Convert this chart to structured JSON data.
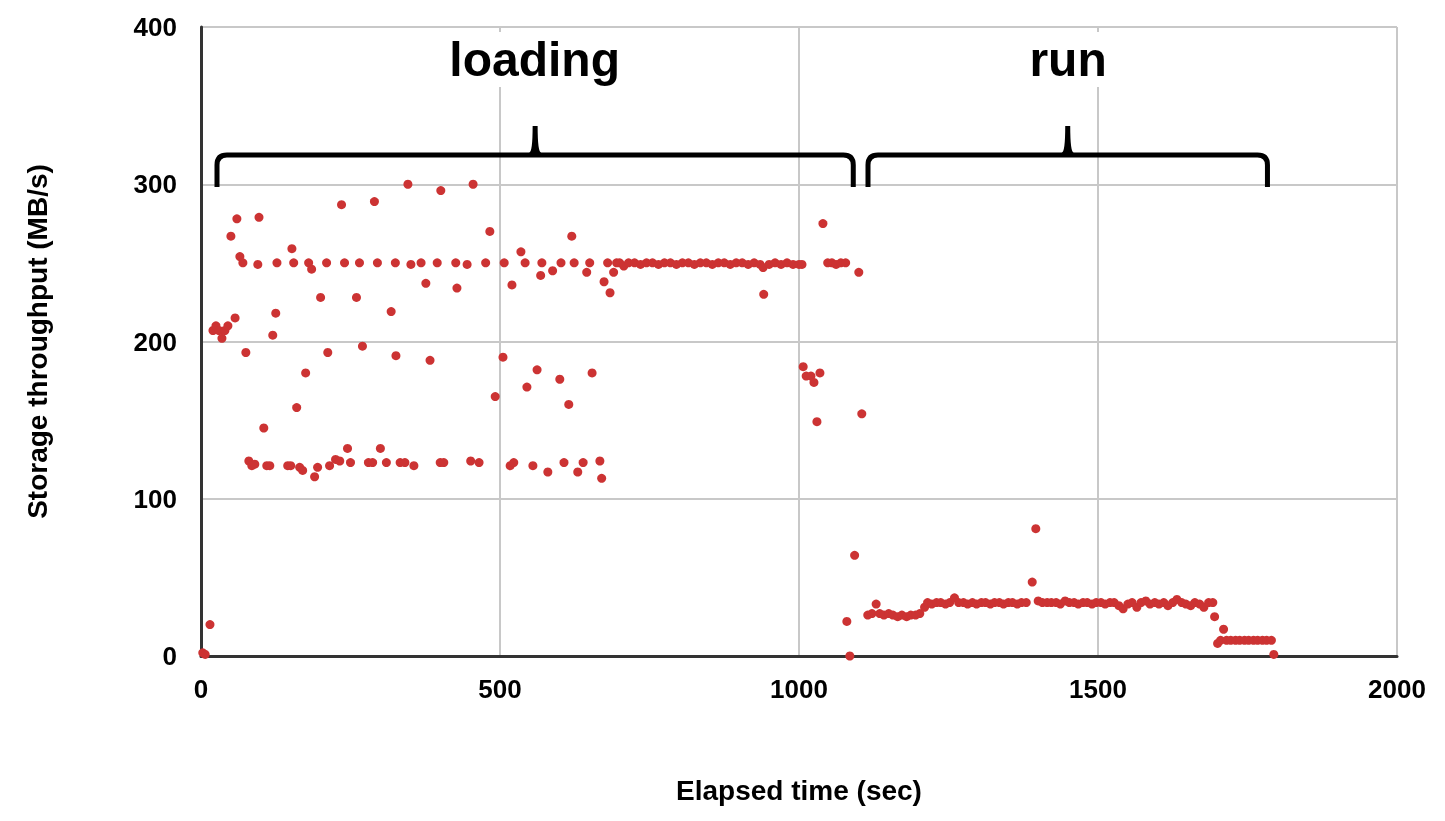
{
  "chart_data": {
    "type": "scatter",
    "xlabel": "Elapsed time (sec)",
    "ylabel": "Storage throughput (MB/s)",
    "annotations": [
      "loading",
      "run"
    ],
    "xlim": [
      0,
      2000
    ],
    "xticks": [
      0,
      500,
      1000,
      1500,
      2000
    ],
    "ylim": [
      0,
      400
    ],
    "yticks": [
      0,
      100,
      200,
      300,
      400
    ],
    "grid": true,
    "marker": "circle",
    "color": "#cc3333",
    "x": [
      3,
      7,
      15,
      20,
      25,
      30,
      35,
      40,
      45,
      50,
      57,
      60,
      65,
      70,
      75,
      80,
      85,
      90,
      95,
      97,
      105,
      110,
      115,
      120,
      125,
      127,
      145,
      150,
      152,
      155,
      160,
      165,
      170,
      175,
      180,
      185,
      190,
      195,
      200,
      210,
      212,
      215,
      225,
      232,
      235,
      240,
      245,
      250,
      260,
      265,
      270,
      280,
      287,
      290,
      295,
      300,
      310,
      318,
      325,
      326,
      333,
      341,
      346,
      351,
      356,
      368,
      376,
      383,
      395,
      400,
      401,
      406,
      426,
      428,
      445,
      451,
      455,
      465,
      476,
      483,
      492,
      505,
      507,
      517,
      520,
      523,
      535,
      542,
      545,
      555,
      562,
      568,
      570,
      580,
      588,
      600,
      602,
      607,
      615,
      620,
      624,
      630,
      639,
      645,
      650,
      654,
      667,
      670,
      674,
      680,
      684,
      690,
      695,
      700,
      707,
      715,
      725,
      735,
      745,
      755,
      765,
      775,
      785,
      795,
      805,
      815,
      825,
      835,
      845,
      855,
      865,
      875,
      885,
      895,
      905,
      915,
      925,
      935,
      940,
      941,
      950,
      960,
      970,
      980,
      990,
      1000,
      1005,
      1007,
      1012,
      1020,
      1025,
      1030,
      1035,
      1040,
      1048,
      1055,
      1062,
      1070,
      1078,
      1080,
      1085,
      1093,
      1100,
      1105,
      1115,
      1122,
      1129,
      1135,
      1142,
      1150,
      1157,
      1165,
      1172,
      1180,
      1187,
      1195,
      1202,
      1210,
      1215,
      1222,
      1230,
      1237,
      1245,
      1252,
      1260,
      1267,
      1275,
      1282,
      1290,
      1297,
      1305,
      1312,
      1320,
      1327,
      1335,
      1342,
      1350,
      1357,
      1365,
      1372,
      1380,
      1390,
      1396,
      1400,
      1407,
      1415,
      1422,
      1430,
      1437,
      1445,
      1452,
      1460,
      1467,
      1475,
      1482,
      1490,
      1497,
      1505,
      1512,
      1520,
      1527,
      1535,
      1542,
      1550,
      1557,
      1565,
      1572,
      1580,
      1587,
      1595,
      1602,
      1610,
      1617,
      1625,
      1632,
      1640,
      1647,
      1655,
      1662,
      1670,
      1677,
      1685,
      1692,
      1695,
      1700,
      1705,
      1710,
      1715,
      1722,
      1730,
      1737,
      1745,
      1752,
      1760,
      1767,
      1775,
      1782,
      1790,
      1794
    ],
    "values": [
      2,
      1,
      20,
      207,
      210,
      207,
      202,
      207,
      210,
      267,
      215,
      278,
      254,
      250,
      193,
      124,
      121,
      122,
      249,
      279,
      145,
      121,
      121,
      204,
      218,
      250,
      121,
      121,
      259,
      250,
      158,
      120,
      118,
      180,
      250,
      246,
      114,
      120,
      228,
      250,
      193,
      121,
      125,
      124,
      287,
      250,
      132,
      123,
      228,
      250,
      197,
      123,
      123,
      289,
      250,
      132,
      123,
      219,
      250,
      191,
      123,
      123,
      300,
      249,
      121,
      250,
      237,
      188,
      250,
      123,
      296,
      123,
      250,
      234,
      249,
      124,
      300,
      123,
      250,
      270,
      165,
      190,
      250,
      121,
      236,
      123,
      257,
      250,
      171,
      121,
      182,
      242,
      250,
      117,
      245,
      176,
      250,
      123,
      160,
      267,
      250,
      117,
      123,
      244,
      250,
      180,
      124,
      113,
      238,
      250,
      231,
      244,
      250,
      250,
      248,
      250,
      250,
      249,
      250,
      250,
      249,
      250,
      250,
      249,
      250,
      250,
      249,
      250,
      250,
      249,
      250,
      250,
      249,
      250,
      250,
      249,
      250,
      249,
      247,
      230,
      249,
      250,
      249,
      250,
      249,
      249,
      249,
      184,
      178,
      178,
      174,
      149,
      180,
      275,
      250,
      250,
      249,
      250,
      250,
      22,
      0,
      64,
      244,
      154,
      26,
      27,
      33,
      27,
      26,
      27,
      26,
      25,
      26,
      25,
      26,
      26,
      27,
      31,
      34,
      33,
      34,
      34,
      33,
      34,
      37,
      34,
      34,
      33,
      34,
      33,
      34,
      34,
      33,
      34,
      34,
      33,
      34,
      34,
      33,
      34,
      34,
      47,
      81,
      35,
      34,
      34,
      34,
      34,
      33,
      35,
      34,
      34,
      33,
      34,
      34,
      33,
      34,
      34,
      33,
      34,
      34,
      32,
      30,
      33,
      34,
      31,
      34,
      35,
      33,
      34,
      33,
      34,
      32,
      34,
      36,
      34,
      33,
      32,
      34,
      33,
      31,
      34,
      34,
      25,
      8,
      10,
      17,
      10,
      10,
      10,
      10,
      10,
      10,
      10,
      10,
      10,
      10,
      10,
      1
    ]
  }
}
